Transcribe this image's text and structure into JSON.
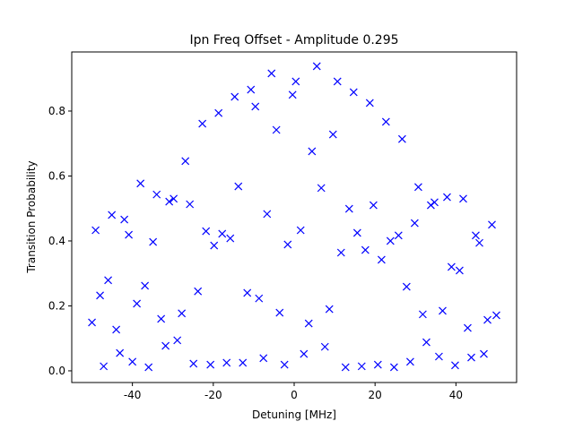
{
  "chart_data": {
    "type": "scatter",
    "title": "Ipn Freq Offset - Amplitude 0.295",
    "x_label": "Detuning [MHz]",
    "y_label": "Transition Probability",
    "marker": "x",
    "color": "#0000ff",
    "xlim": [
      -55,
      55
    ],
    "ylim": [
      -0.036,
      0.982
    ],
    "xticks": [
      -40,
      -20,
      0,
      20,
      40
    ],
    "yticks": [
      {
        "value": 0,
        "label": "0.0"
      },
      {
        "value": 0.2,
        "label": "0.2"
      },
      {
        "value": 0.4,
        "label": "0.4"
      },
      {
        "value": 0.6,
        "label": "0.6"
      },
      {
        "value": 0.8,
        "label": "0.8"
      }
    ],
    "x": [
      -50,
      -49.1,
      -48,
      -47.1,
      -46,
      -45.1,
      -44,
      -43.1,
      -42,
      -40.9,
      -40,
      -38.9,
      -38,
      -36.9,
      -36,
      -34.9,
      -34,
      -32.9,
      -31.8,
      -30.9,
      -29.8,
      -28.9,
      -27.8,
      -26.9,
      -25.8,
      -24.9,
      -23.8,
      -22.7,
      -21.8,
      -20.7,
      -19.8,
      -18.7,
      -17.8,
      -16.7,
      -15.8,
      -14.7,
      -13.8,
      -12.7,
      -11.6,
      -10.7,
      -9.6,
      -8.7,
      -7.6,
      -6.7,
      -5.6,
      -4.4,
      -3.6,
      -2.4,
      -1.6,
      -0.4,
      0.4,
      1.6,
      2.4,
      3.6,
      4.4,
      5.6,
      6.7,
      7.6,
      8.7,
      9.6,
      10.7,
      11.6,
      12.7,
      13.6,
      14.7,
      15.6,
      16.7,
      17.6,
      18.7,
      19.6,
      20.7,
      21.6,
      22.7,
      23.8,
      24.7,
      25.8,
      26.7,
      27.8,
      28.7,
      29.8,
      30.7,
      31.8,
      32.7,
      33.8,
      34.7,
      35.8,
      36.7,
      37.8,
      38.9,
      39.8,
      40.9,
      41.8,
      42.9,
      43.8,
      44.9,
      45.8,
      46.9,
      47.8,
      48.9,
      50
    ],
    "values": [
      0.149,
      0.433,
      0.232,
      0.014,
      0.279,
      0.48,
      0.127,
      0.055,
      0.466,
      0.419,
      0.028,
      0.207,
      0.577,
      0.262,
      0.011,
      0.397,
      0.543,
      0.16,
      0.077,
      0.521,
      0.53,
      0.094,
      0.177,
      0.646,
      0.513,
      0.022,
      0.245,
      0.761,
      0.43,
      0.019,
      0.386,
      0.794,
      0.422,
      0.025,
      0.408,
      0.844,
      0.568,
      0.025,
      0.24,
      0.866,
      0.814,
      0.223,
      0.039,
      0.483,
      0.916,
      0.742,
      0.179,
      0.019,
      0.389,
      0.85,
      0.891,
      0.433,
      0.052,
      0.146,
      0.676,
      0.938,
      0.563,
      0.074,
      0.19,
      0.728,
      0.891,
      0.364,
      0.011,
      0.499,
      0.858,
      0.425,
      0.014,
      0.372,
      0.825,
      0.51,
      0.019,
      0.342,
      0.767,
      0.4,
      0.011,
      0.417,
      0.714,
      0.259,
      0.028,
      0.455,
      0.566,
      0.174,
      0.088,
      0.51,
      0.519,
      0.044,
      0.185,
      0.535,
      0.32,
      0.017,
      0.309,
      0.53,
      0.132,
      0.041,
      0.417,
      0.394,
      0.052,
      0.157,
      0.45,
      0.171
    ]
  }
}
